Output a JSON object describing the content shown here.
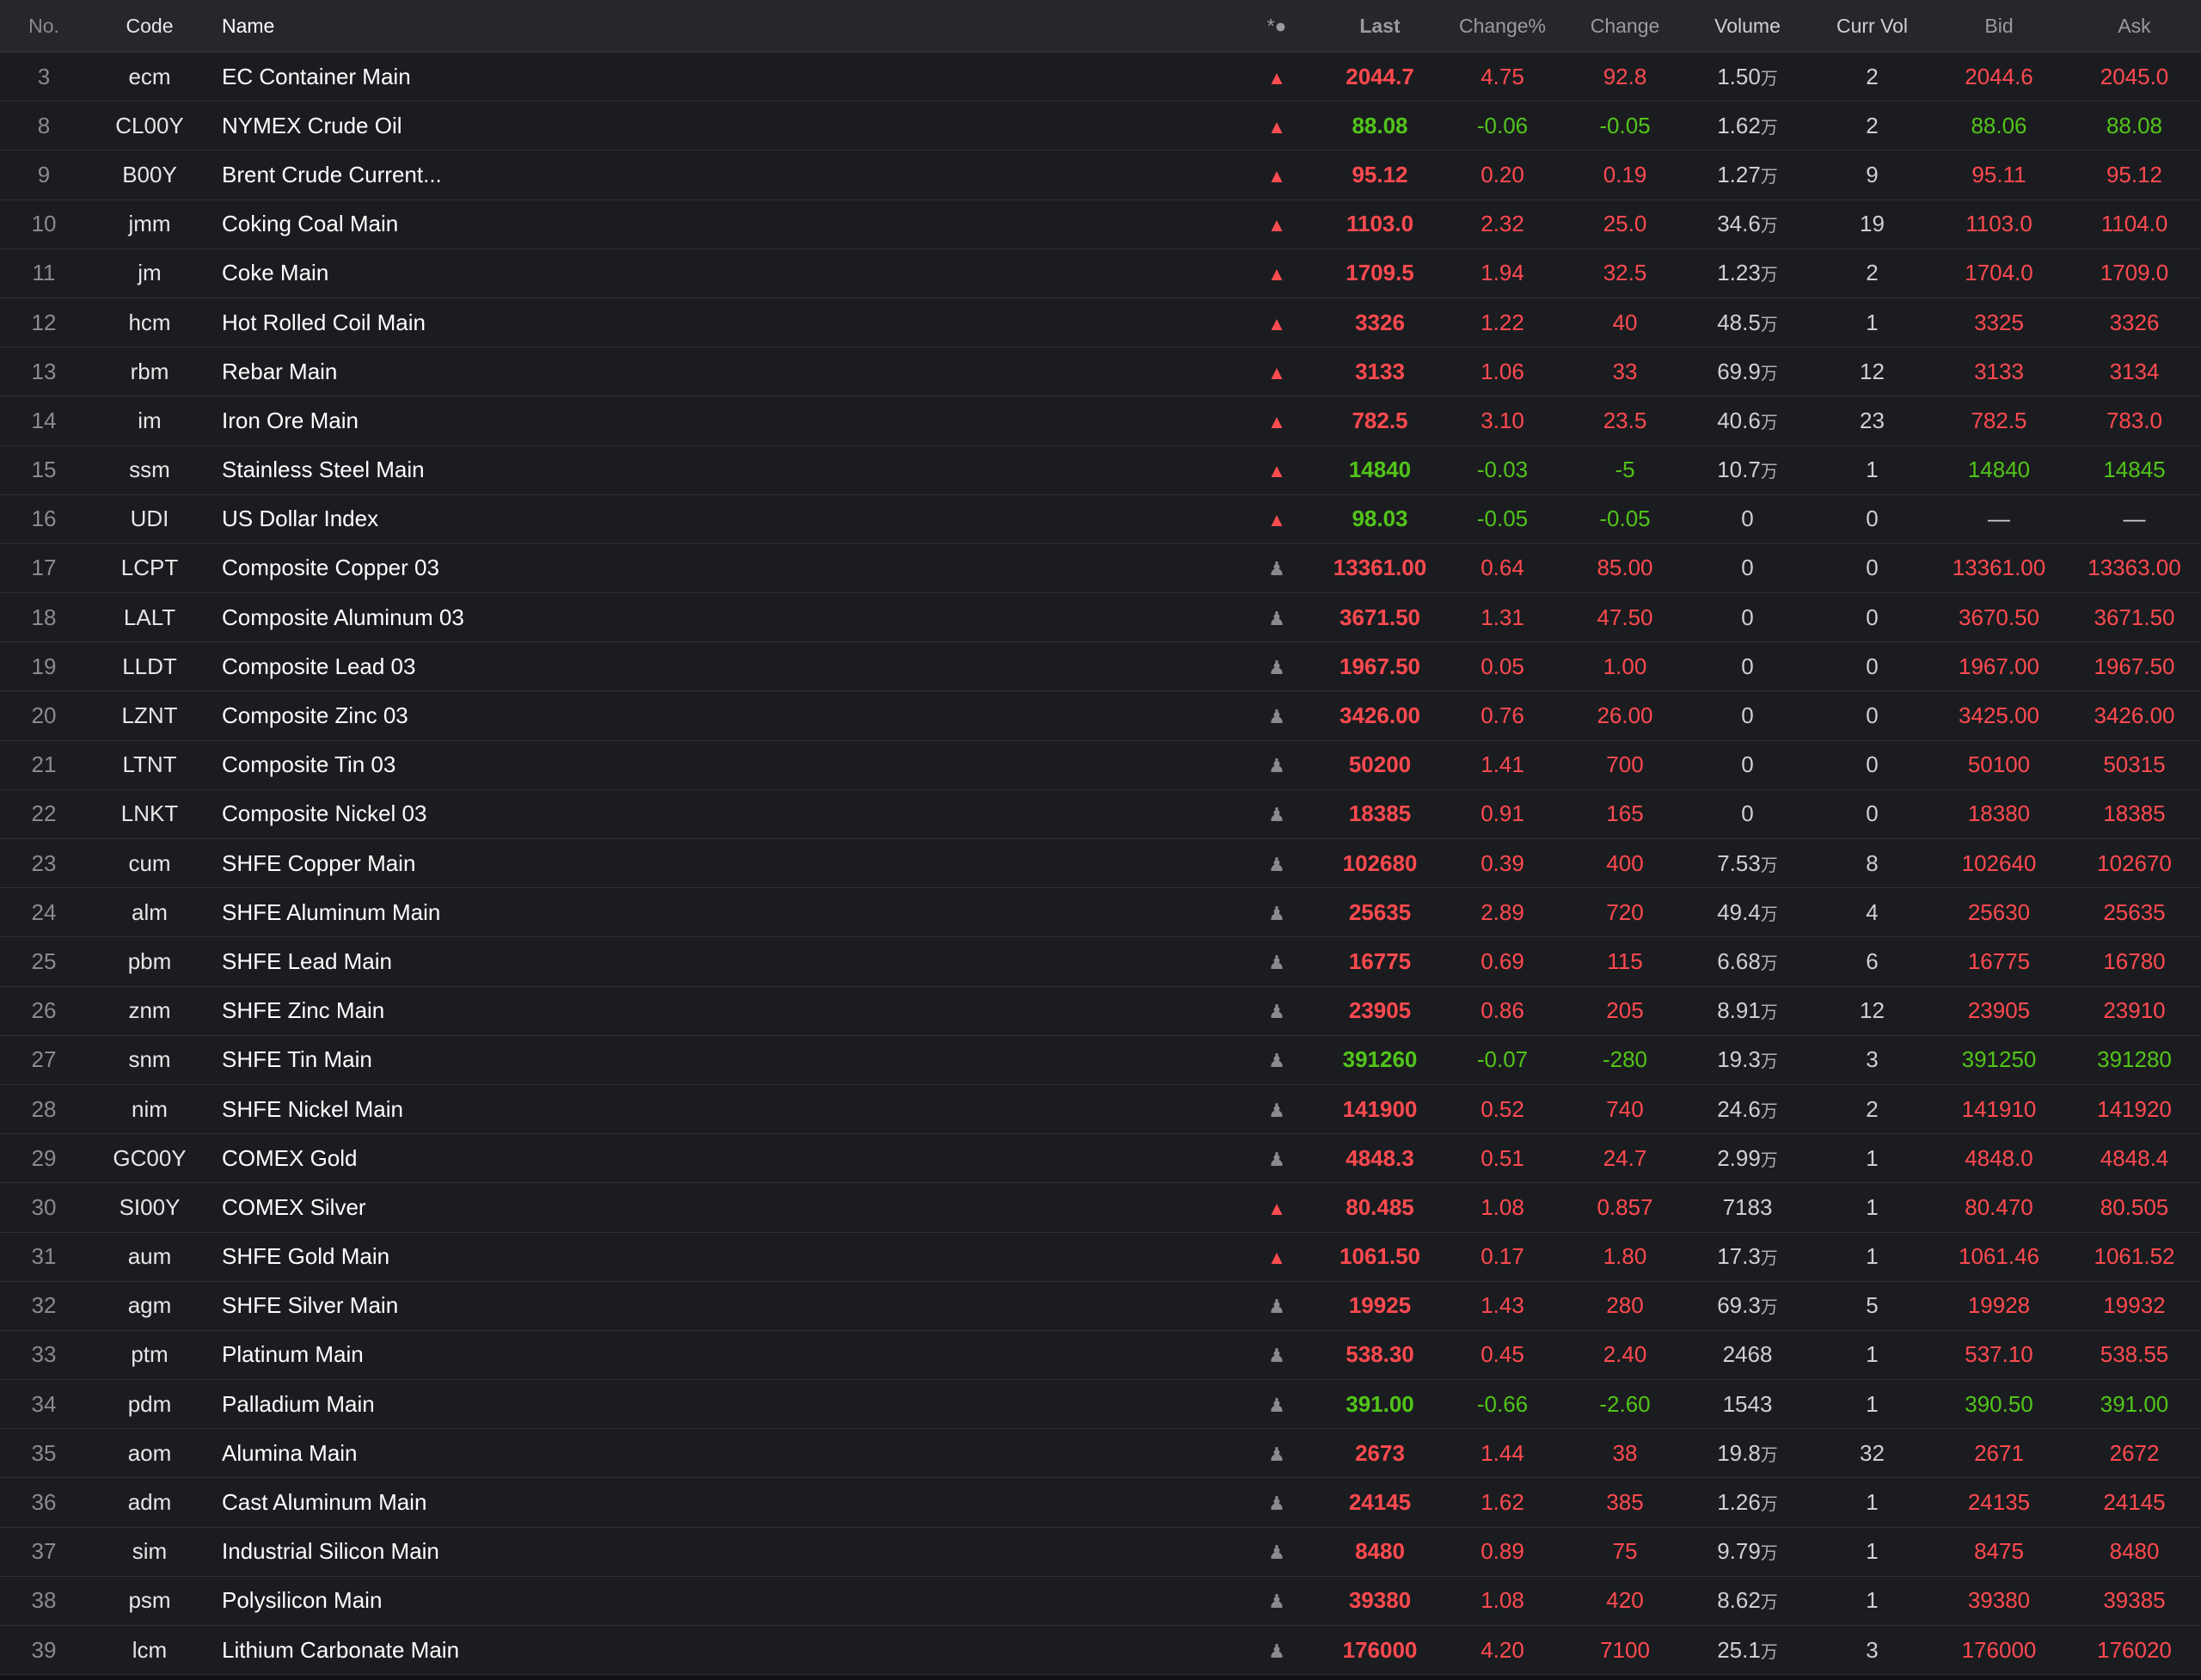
{
  "colors": {
    "background": "#1b1c20",
    "header_bg": "#26272d",
    "up": "#ff4a4f",
    "down": "#52c41a",
    "neutral": "#d0d0d2",
    "muted": "#8a8b90"
  },
  "header": {
    "no": "No.",
    "code": "Code",
    "name": "Name",
    "mark": "*●",
    "last": "Last",
    "change_pct": "Change%",
    "change": "Change",
    "volume": "Volume",
    "curr_vol": "Curr Vol",
    "bid": "Bid",
    "ask": "Ask"
  },
  "volume_unit_glyph": "万",
  "rows": [
    {
      "no": "3",
      "code": "ecm",
      "name": "EC Container Main",
      "mark": "triangle-up-icon",
      "last": "2044.7",
      "change_pct": "4.75",
      "change": "92.8",
      "volume": "1.50",
      "volume_unit": "万",
      "curr_vol": "2",
      "bid": "2044.6",
      "ask": "2045.0",
      "dir": "up",
      "bid_dir": "up",
      "ask_dir": "up"
    },
    {
      "no": "8",
      "code": "CL00Y",
      "name": "NYMEX Crude Oil",
      "mark": "triangle-up-icon",
      "last": "88.08",
      "change_pct": "-0.06",
      "change": "-0.05",
      "volume": "1.62",
      "volume_unit": "万",
      "curr_vol": "2",
      "bid": "88.06",
      "ask": "88.08",
      "dir": "down",
      "bid_dir": "down",
      "ask_dir": "down"
    },
    {
      "no": "9",
      "code": "B00Y",
      "name": "Brent Crude Current...",
      "mark": "triangle-up-icon",
      "last": "95.12",
      "change_pct": "0.20",
      "change": "0.19",
      "volume": "1.27",
      "volume_unit": "万",
      "curr_vol": "9",
      "bid": "95.11",
      "ask": "95.12",
      "dir": "up",
      "bid_dir": "up",
      "ask_dir": "up"
    },
    {
      "no": "10",
      "code": "jmm",
      "name": "Coking Coal Main",
      "mark": "triangle-up-icon",
      "last": "1103.0",
      "change_pct": "2.32",
      "change": "25.0",
      "volume": "34.6",
      "volume_unit": "万",
      "curr_vol": "19",
      "bid": "1103.0",
      "ask": "1104.0",
      "dir": "up",
      "bid_dir": "up",
      "ask_dir": "up"
    },
    {
      "no": "11",
      "code": "jm",
      "name": "Coke Main",
      "mark": "triangle-up-icon",
      "last": "1709.5",
      "change_pct": "1.94",
      "change": "32.5",
      "volume": "1.23",
      "volume_unit": "万",
      "curr_vol": "2",
      "bid": "1704.0",
      "ask": "1709.0",
      "dir": "up",
      "bid_dir": "up",
      "ask_dir": "up"
    },
    {
      "no": "12",
      "code": "hcm",
      "name": "Hot Rolled Coil Main",
      "mark": "triangle-up-icon",
      "last": "3326",
      "change_pct": "1.22",
      "change": "40",
      "volume": "48.5",
      "volume_unit": "万",
      "curr_vol": "1",
      "bid": "3325",
      "ask": "3326",
      "dir": "up",
      "bid_dir": "up",
      "ask_dir": "up"
    },
    {
      "no": "13",
      "code": "rbm",
      "name": "Rebar Main",
      "mark": "triangle-up-icon",
      "last": "3133",
      "change_pct": "1.06",
      "change": "33",
      "volume": "69.9",
      "volume_unit": "万",
      "curr_vol": "12",
      "bid": "3133",
      "ask": "3134",
      "dir": "up",
      "bid_dir": "up",
      "ask_dir": "up"
    },
    {
      "no": "14",
      "code": "im",
      "name": "Iron Ore Main",
      "mark": "triangle-up-icon",
      "last": "782.5",
      "change_pct": "3.10",
      "change": "23.5",
      "volume": "40.6",
      "volume_unit": "万",
      "curr_vol": "23",
      "bid": "782.5",
      "ask": "783.0",
      "dir": "up",
      "bid_dir": "up",
      "ask_dir": "up"
    },
    {
      "no": "15",
      "code": "ssm",
      "name": "Stainless Steel Main",
      "mark": "triangle-up-icon",
      "last": "14840",
      "change_pct": "-0.03",
      "change": "-5",
      "volume": "10.7",
      "volume_unit": "万",
      "curr_vol": "1",
      "bid": "14840",
      "ask": "14845",
      "dir": "down",
      "bid_dir": "down",
      "ask_dir": "down"
    },
    {
      "no": "16",
      "code": "UDI",
      "name": "US Dollar Index",
      "mark": "triangle-up-icon",
      "last": "98.03",
      "change_pct": "-0.05",
      "change": "-0.05",
      "volume": "0",
      "volume_unit": "",
      "curr_vol": "0",
      "bid": "—",
      "ask": "—",
      "dir": "down",
      "bid_dir": "flat",
      "ask_dir": "flat"
    },
    {
      "no": "17",
      "code": "LCPT",
      "name": "Composite Copper 03",
      "mark": "pawn-icon",
      "last": "13361.00",
      "change_pct": "0.64",
      "change": "85.00",
      "volume": "0",
      "volume_unit": "",
      "curr_vol": "0",
      "bid": "13361.00",
      "ask": "13363.00",
      "dir": "up",
      "bid_dir": "up",
      "ask_dir": "up"
    },
    {
      "no": "18",
      "code": "LALT",
      "name": "Composite Aluminum 03",
      "mark": "pawn-icon",
      "last": "3671.50",
      "change_pct": "1.31",
      "change": "47.50",
      "volume": "0",
      "volume_unit": "",
      "curr_vol": "0",
      "bid": "3670.50",
      "ask": "3671.50",
      "dir": "up",
      "bid_dir": "up",
      "ask_dir": "up"
    },
    {
      "no": "19",
      "code": "LLDT",
      "name": "Composite Lead 03",
      "mark": "pawn-icon",
      "last": "1967.50",
      "change_pct": "0.05",
      "change": "1.00",
      "volume": "0",
      "volume_unit": "",
      "curr_vol": "0",
      "bid": "1967.00",
      "ask": "1967.50",
      "dir": "up",
      "bid_dir": "up",
      "ask_dir": "up"
    },
    {
      "no": "20",
      "code": "LZNT",
      "name": "Composite Zinc 03",
      "mark": "pawn-icon",
      "last": "3426.00",
      "change_pct": "0.76",
      "change": "26.00",
      "volume": "0",
      "volume_unit": "",
      "curr_vol": "0",
      "bid": "3425.00",
      "ask": "3426.00",
      "dir": "up",
      "bid_dir": "up",
      "ask_dir": "up"
    },
    {
      "no": "21",
      "code": "LTNT",
      "name": "Composite Tin 03",
      "mark": "pawn-icon",
      "last": "50200",
      "change_pct": "1.41",
      "change": "700",
      "volume": "0",
      "volume_unit": "",
      "curr_vol": "0",
      "bid": "50100",
      "ask": "50315",
      "dir": "up",
      "bid_dir": "up",
      "ask_dir": "up"
    },
    {
      "no": "22",
      "code": "LNKT",
      "name": "Composite Nickel 03",
      "mark": "pawn-icon",
      "last": "18385",
      "change_pct": "0.91",
      "change": "165",
      "volume": "0",
      "volume_unit": "",
      "curr_vol": "0",
      "bid": "18380",
      "ask": "18385",
      "dir": "up",
      "bid_dir": "up",
      "ask_dir": "up"
    },
    {
      "no": "23",
      "code": "cum",
      "name": "SHFE Copper Main",
      "mark": "pawn-icon",
      "last": "102680",
      "change_pct": "0.39",
      "change": "400",
      "volume": "7.53",
      "volume_unit": "万",
      "curr_vol": "8",
      "bid": "102640",
      "ask": "102670",
      "dir": "up",
      "bid_dir": "up",
      "ask_dir": "up"
    },
    {
      "no": "24",
      "code": "alm",
      "name": "SHFE Aluminum Main",
      "mark": "pawn-icon",
      "last": "25635",
      "change_pct": "2.89",
      "change": "720",
      "volume": "49.4",
      "volume_unit": "万",
      "curr_vol": "4",
      "bid": "25630",
      "ask": "25635",
      "dir": "up",
      "bid_dir": "up",
      "ask_dir": "up"
    },
    {
      "no": "25",
      "code": "pbm",
      "name": "SHFE Lead Main",
      "mark": "pawn-icon",
      "last": "16775",
      "change_pct": "0.69",
      "change": "115",
      "volume": "6.68",
      "volume_unit": "万",
      "curr_vol": "6",
      "bid": "16775",
      "ask": "16780",
      "dir": "up",
      "bid_dir": "up",
      "ask_dir": "up"
    },
    {
      "no": "26",
      "code": "znm",
      "name": "SHFE Zinc Main",
      "mark": "pawn-icon",
      "last": "23905",
      "change_pct": "0.86",
      "change": "205",
      "volume": "8.91",
      "volume_unit": "万",
      "curr_vol": "12",
      "bid": "23905",
      "ask": "23910",
      "dir": "up",
      "bid_dir": "up",
      "ask_dir": "up"
    },
    {
      "no": "27",
      "code": "snm",
      "name": "SHFE Tin Main",
      "mark": "pawn-icon",
      "last": "391260",
      "change_pct": "-0.07",
      "change": "-280",
      "volume": "19.3",
      "volume_unit": "万",
      "curr_vol": "3",
      "bid": "391250",
      "ask": "391280",
      "dir": "down",
      "bid_dir": "down",
      "ask_dir": "down"
    },
    {
      "no": "28",
      "code": "nim",
      "name": "SHFE Nickel Main",
      "mark": "pawn-icon",
      "last": "141900",
      "change_pct": "0.52",
      "change": "740",
      "volume": "24.6",
      "volume_unit": "万",
      "curr_vol": "2",
      "bid": "141910",
      "ask": "141920",
      "dir": "up",
      "bid_dir": "up",
      "ask_dir": "up"
    },
    {
      "no": "29",
      "code": "GC00Y",
      "name": "COMEX Gold",
      "mark": "pawn-icon",
      "last": "4848.3",
      "change_pct": "0.51",
      "change": "24.7",
      "volume": "2.99",
      "volume_unit": "万",
      "curr_vol": "1",
      "bid": "4848.0",
      "ask": "4848.4",
      "dir": "up",
      "bid_dir": "up",
      "ask_dir": "up"
    },
    {
      "no": "30",
      "code": "SI00Y",
      "name": "COMEX Silver",
      "mark": "triangle-up-icon",
      "last": "80.485",
      "change_pct": "1.08",
      "change": "0.857",
      "volume": "7183",
      "volume_unit": "",
      "curr_vol": "1",
      "bid": "80.470",
      "ask": "80.505",
      "dir": "up",
      "bid_dir": "up",
      "ask_dir": "up"
    },
    {
      "no": "31",
      "code": "aum",
      "name": "SHFE Gold Main",
      "mark": "triangle-up-icon",
      "last": "1061.50",
      "change_pct": "0.17",
      "change": "1.80",
      "volume": "17.3",
      "volume_unit": "万",
      "curr_vol": "1",
      "bid": "1061.46",
      "ask": "1061.52",
      "dir": "up",
      "bid_dir": "up",
      "ask_dir": "up"
    },
    {
      "no": "32",
      "code": "agm",
      "name": "SHFE Silver Main",
      "mark": "pawn-icon",
      "last": "19925",
      "change_pct": "1.43",
      "change": "280",
      "volume": "69.3",
      "volume_unit": "万",
      "curr_vol": "5",
      "bid": "19928",
      "ask": "19932",
      "dir": "up",
      "bid_dir": "up",
      "ask_dir": "up"
    },
    {
      "no": "33",
      "code": "ptm",
      "name": "Platinum Main",
      "mark": "pawn-icon",
      "last": "538.30",
      "change_pct": "0.45",
      "change": "2.40",
      "volume": "2468",
      "volume_unit": "",
      "curr_vol": "1",
      "bid": "537.10",
      "ask": "538.55",
      "dir": "up",
      "bid_dir": "up",
      "ask_dir": "up"
    },
    {
      "no": "34",
      "code": "pdm",
      "name": "Palladium Main",
      "mark": "pawn-icon",
      "last": "391.00",
      "change_pct": "-0.66",
      "change": "-2.60",
      "volume": "1543",
      "volume_unit": "",
      "curr_vol": "1",
      "bid": "390.50",
      "ask": "391.00",
      "dir": "down",
      "bid_dir": "down",
      "ask_dir": "down"
    },
    {
      "no": "35",
      "code": "aom",
      "name": "Alumina Main",
      "mark": "pawn-icon",
      "last": "2673",
      "change_pct": "1.44",
      "change": "38",
      "volume": "19.8",
      "volume_unit": "万",
      "curr_vol": "32",
      "bid": "2671",
      "ask": "2672",
      "dir": "up",
      "bid_dir": "up",
      "ask_dir": "up"
    },
    {
      "no": "36",
      "code": "adm",
      "name": "Cast Aluminum Main",
      "mark": "pawn-icon",
      "last": "24145",
      "change_pct": "1.62",
      "change": "385",
      "volume": "1.26",
      "volume_unit": "万",
      "curr_vol": "1",
      "bid": "24135",
      "ask": "24145",
      "dir": "up",
      "bid_dir": "up",
      "ask_dir": "up"
    },
    {
      "no": "37",
      "code": "sim",
      "name": "Industrial Silicon Main",
      "mark": "pawn-icon",
      "last": "8480",
      "change_pct": "0.89",
      "change": "75",
      "volume": "9.79",
      "volume_unit": "万",
      "curr_vol": "1",
      "bid": "8475",
      "ask": "8480",
      "dir": "up",
      "bid_dir": "up",
      "ask_dir": "up"
    },
    {
      "no": "38",
      "code": "psm",
      "name": "Polysilicon Main",
      "mark": "pawn-icon",
      "last": "39380",
      "change_pct": "1.08",
      "change": "420",
      "volume": "8.62",
      "volume_unit": "万",
      "curr_vol": "1",
      "bid": "39380",
      "ask": "39385",
      "dir": "up",
      "bid_dir": "up",
      "ask_dir": "up"
    },
    {
      "no": "39",
      "code": "lcm",
      "name": "Lithium Carbonate Main",
      "mark": "pawn-icon",
      "last": "176000",
      "change_pct": "4.20",
      "change": "7100",
      "volume": "25.1",
      "volume_unit": "万",
      "curr_vol": "3",
      "bid": "176000",
      "ask": "176020",
      "dir": "up",
      "bid_dir": "up",
      "ask_dir": "up"
    }
  ]
}
